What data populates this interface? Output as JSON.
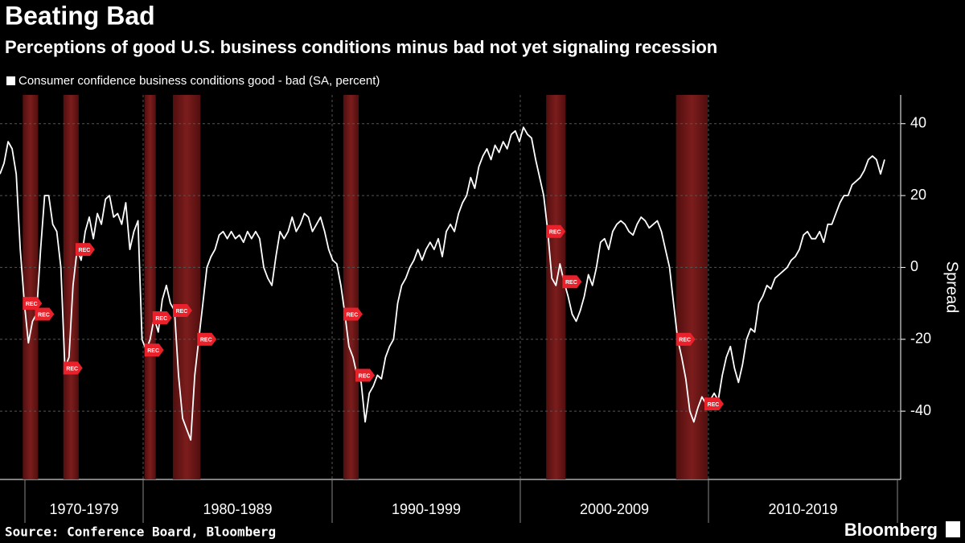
{
  "chart_data": {
    "type": "line",
    "title": "Beating Bad",
    "subtitle": "Perceptions of good U.S. business conditions minus bad not yet signaling recession",
    "y_label": "Spread",
    "source": "Source: Conference Board, Bloomberg",
    "brand": "Bloomberg",
    "recession_label": "REC",
    "x_labels": [
      "1970-1979",
      "1980-1989",
      "1990-1999",
      "2000-2009",
      "2010-2019"
    ],
    "ylim": [
      -59,
      48
    ],
    "yticks": [
      -40,
      -20,
      0,
      20,
      40
    ],
    "grid": true,
    "recessions": [
      [
        6,
        9
      ],
      [
        16,
        19
      ],
      [
        36,
        38
      ],
      [
        43,
        49
      ],
      [
        85,
        88
      ],
      [
        135,
        139
      ],
      [
        167,
        174
      ]
    ],
    "series": [
      {
        "name": "Consumer confidence business conditions good - bad (SA, percent)",
        "color": "#ffffff",
        "values": [
          26,
          29,
          35,
          33,
          26,
          5,
          -10,
          -21,
          -15,
          -13,
          5,
          20,
          20,
          12,
          10,
          0,
          -28,
          -25,
          -5,
          5,
          2,
          10,
          14,
          8,
          15,
          12,
          19,
          20,
          14,
          15,
          12,
          18,
          5,
          10,
          13,
          -20,
          -23,
          -20,
          -14,
          -18,
          -9,
          -5,
          -10,
          -12,
          -30,
          -42,
          -45,
          -48,
          -30,
          -20,
          -10,
          0,
          3,
          5,
          9,
          10,
          8,
          10,
          8,
          9,
          7,
          10,
          8,
          10,
          8,
          0,
          -3,
          -5,
          3,
          10,
          8,
          10,
          14,
          10,
          12,
          15,
          14,
          10,
          12,
          14,
          10,
          5,
          2,
          1,
          -5,
          -13,
          -22,
          -25,
          -30,
          -32,
          -43,
          -35,
          -33,
          -30,
          -31,
          -25,
          -22,
          -20,
          -10,
          -5,
          -3,
          0,
          2,
          5,
          2,
          5,
          7,
          5,
          8,
          3,
          10,
          12,
          10,
          15,
          18,
          20,
          25,
          22,
          28,
          31,
          33,
          30,
          34,
          32,
          35,
          33,
          37,
          38,
          35,
          39,
          37,
          36,
          30,
          25,
          20,
          10,
          -3,
          -5,
          1,
          -4,
          -8,
          -13,
          -15,
          -12,
          -8,
          -2,
          -5,
          0,
          7,
          8,
          5,
          10,
          12,
          13,
          12,
          10,
          9,
          12,
          14,
          13,
          11,
          12,
          13,
          10,
          5,
          0,
          -10,
          -20,
          -25,
          -31,
          -40,
          -43,
          -39,
          -36,
          -38,
          -37,
          -35,
          -37,
          -30,
          -25,
          -22,
          -28,
          -32,
          -27,
          -20,
          -17,
          -18,
          -10,
          -8,
          -5,
          -6,
          -3,
          -2,
          -1,
          0,
          2,
          3,
          5,
          9,
          10,
          8,
          8,
          10,
          7,
          12,
          12,
          15,
          18,
          20,
          20,
          23,
          24,
          25,
          27,
          30,
          31,
          30,
          26,
          30
        ]
      }
    ]
  }
}
